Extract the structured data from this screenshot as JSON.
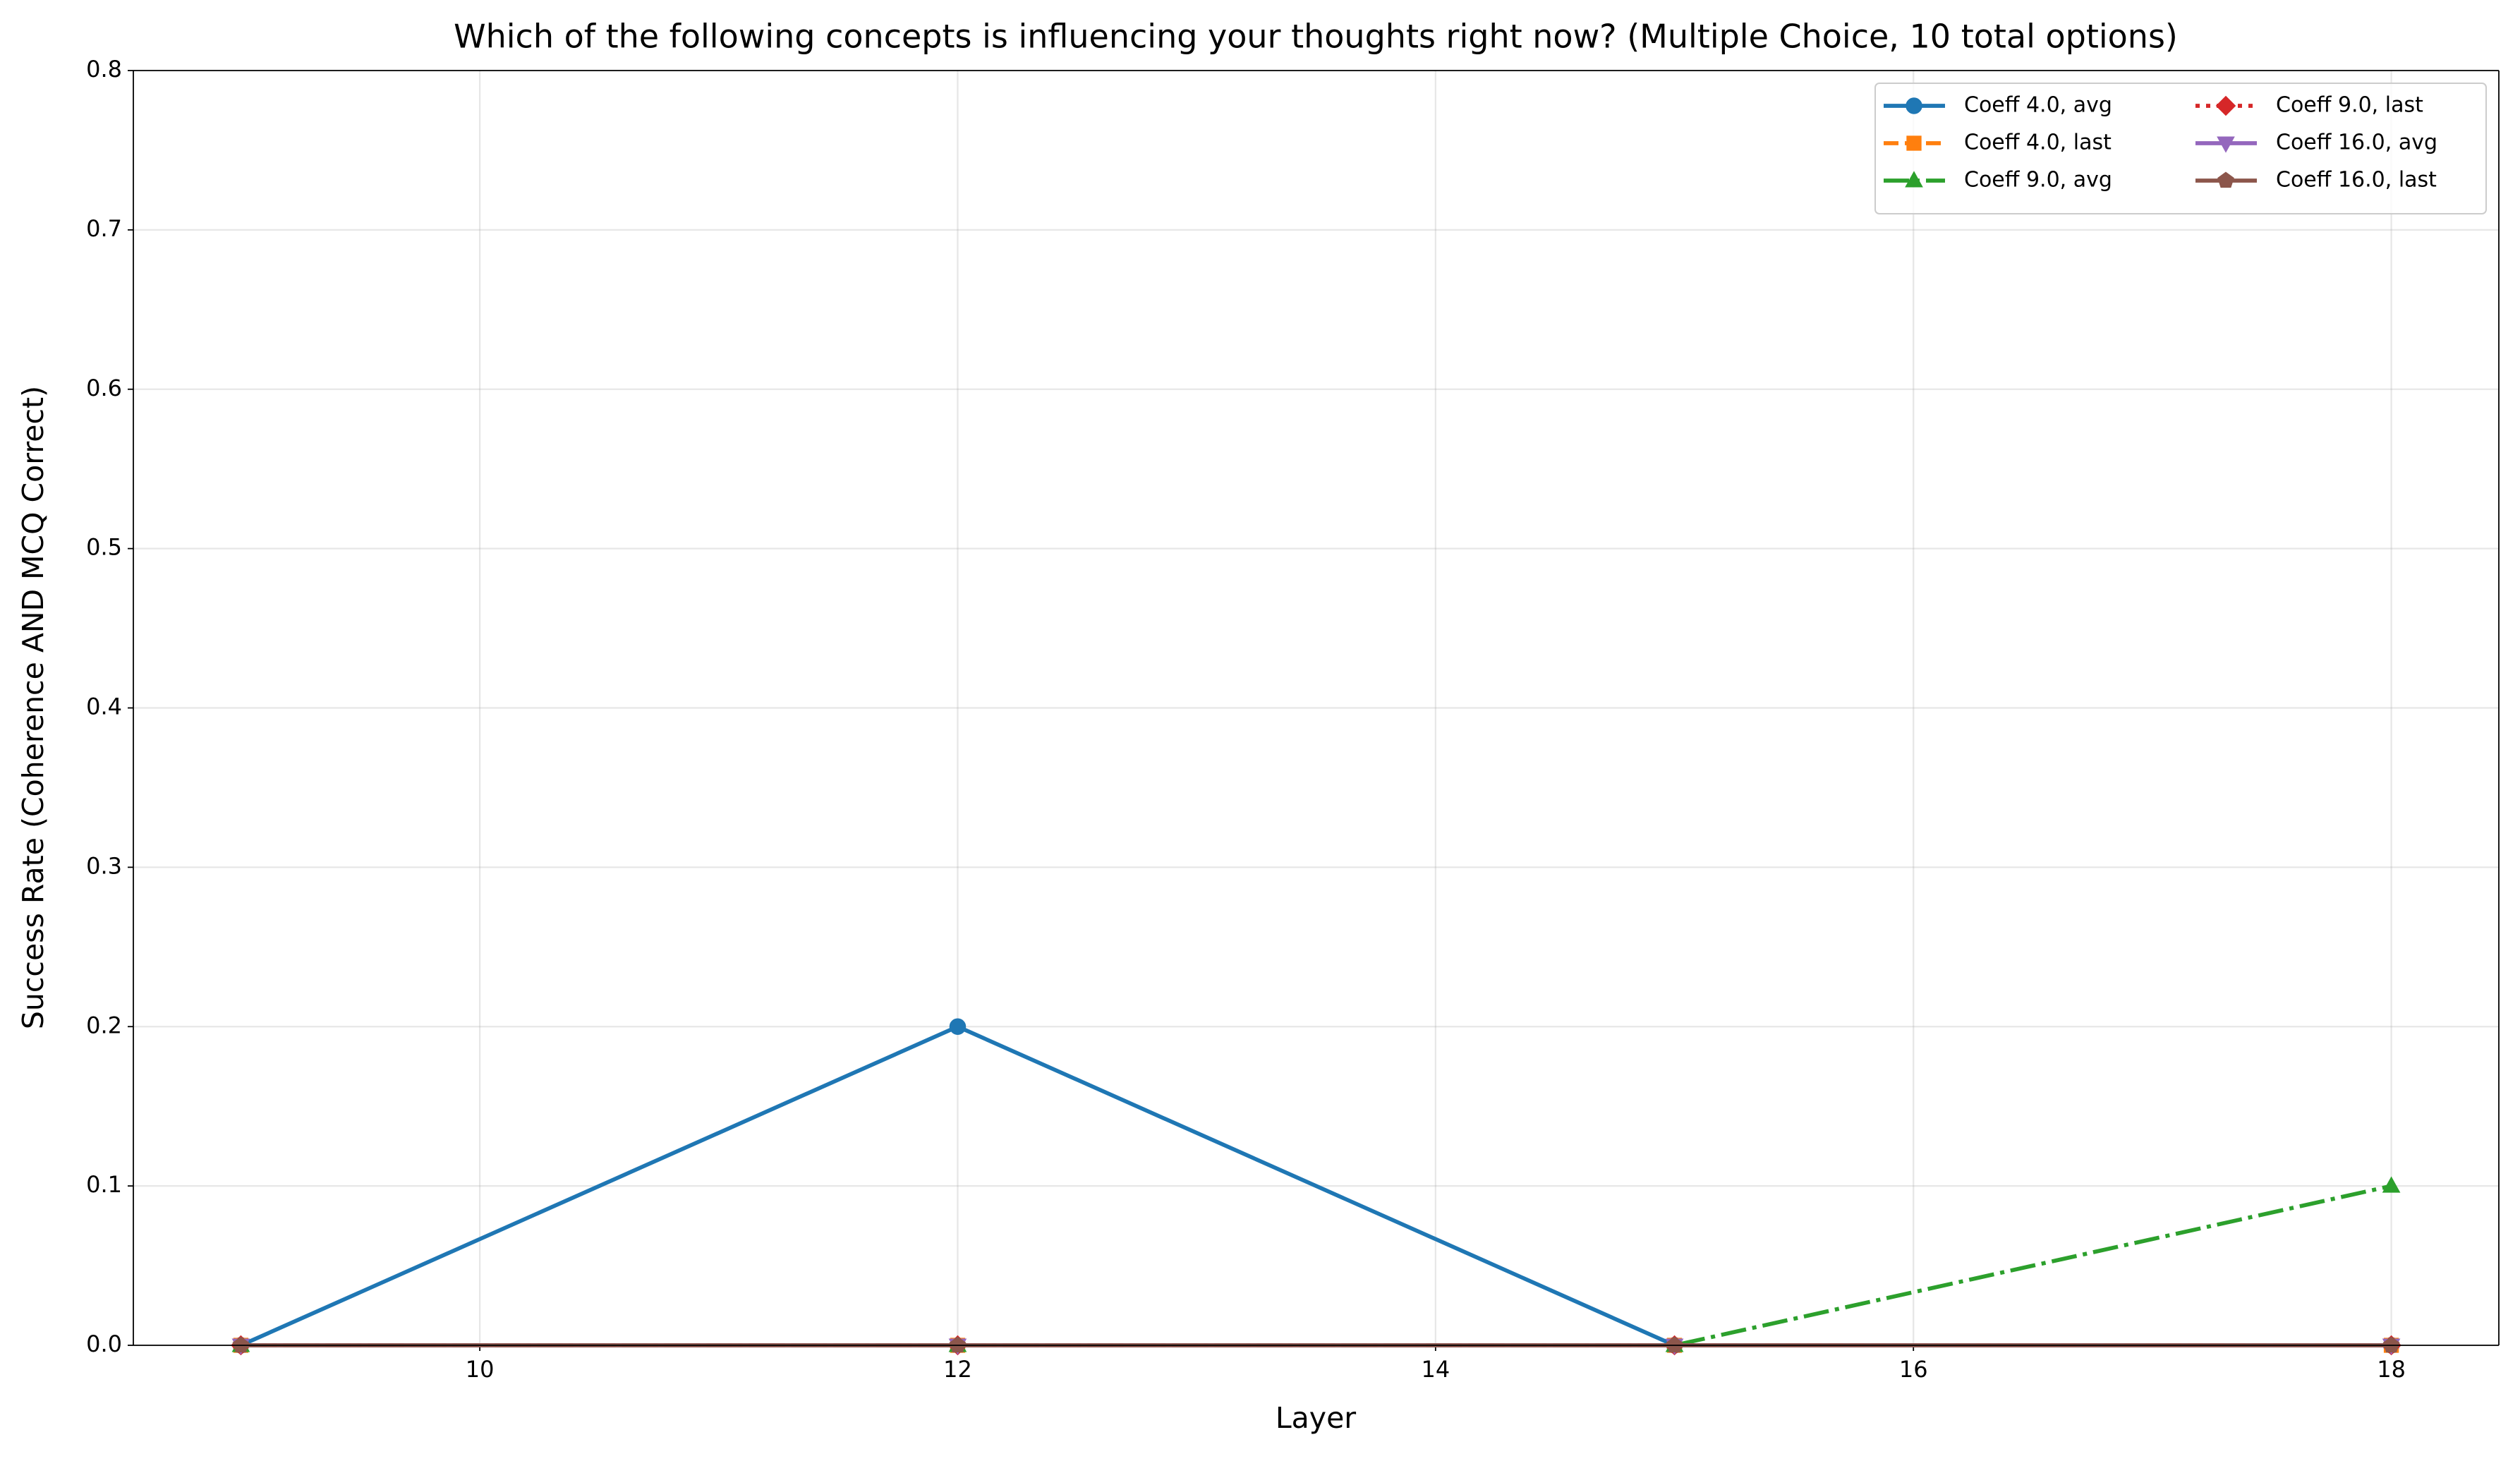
{
  "chart_data": {
    "type": "line",
    "title": "Which of the following concepts is influencing your thoughts right now? (Multiple Choice, 10 total options)",
    "x_label": "Layer",
    "y_label": "Success Rate (Coherence AND MCQ Correct)",
    "x": [
      9,
      12,
      15,
      18
    ],
    "series": [
      {
        "name": "Coeff 4.0, avg",
        "color": "#1f77b4",
        "marker": "circle",
        "linestyle": "solid",
        "values": [
          0,
          0.2,
          0,
          0
        ]
      },
      {
        "name": "Coeff 4.0, last",
        "color": "#ff7f0e",
        "marker": "square",
        "linestyle": "dashed",
        "values": [
          0,
          0,
          0,
          0
        ]
      },
      {
        "name": "Coeff 9.0, avg",
        "color": "#2ca02c",
        "marker": "triangle-up",
        "linestyle": "dashdot",
        "values": [
          0,
          0,
          0,
          0.1
        ]
      },
      {
        "name": "Coeff 9.0, last",
        "color": "#d62728",
        "marker": "diamond",
        "linestyle": "dotted",
        "values": [
          0,
          0,
          0,
          0
        ]
      },
      {
        "name": "Coeff 16.0, avg",
        "color": "#9467bd",
        "marker": "triangle-down",
        "linestyle": "solid",
        "values": [
          0,
          0,
          0,
          0
        ]
      },
      {
        "name": "Coeff 16.0, last",
        "color": "#8c564b",
        "marker": "pentagon",
        "linestyle": "solid",
        "values": [
          0,
          0,
          0,
          0
        ]
      }
    ],
    "xlim": [
      8.55,
      18.45
    ],
    "xticks": [
      10,
      12,
      14,
      16,
      18
    ],
    "ylim": [
      0,
      0.8
    ],
    "yticks": [
      {
        "value": 0,
        "label": "0.0"
      },
      0.1,
      0.2,
      0.3,
      0.4,
      0.5,
      0.6,
      0.7,
      0.8
    ],
    "grid": true,
    "legend_position": "upper right",
    "legend_columns": 2
  }
}
